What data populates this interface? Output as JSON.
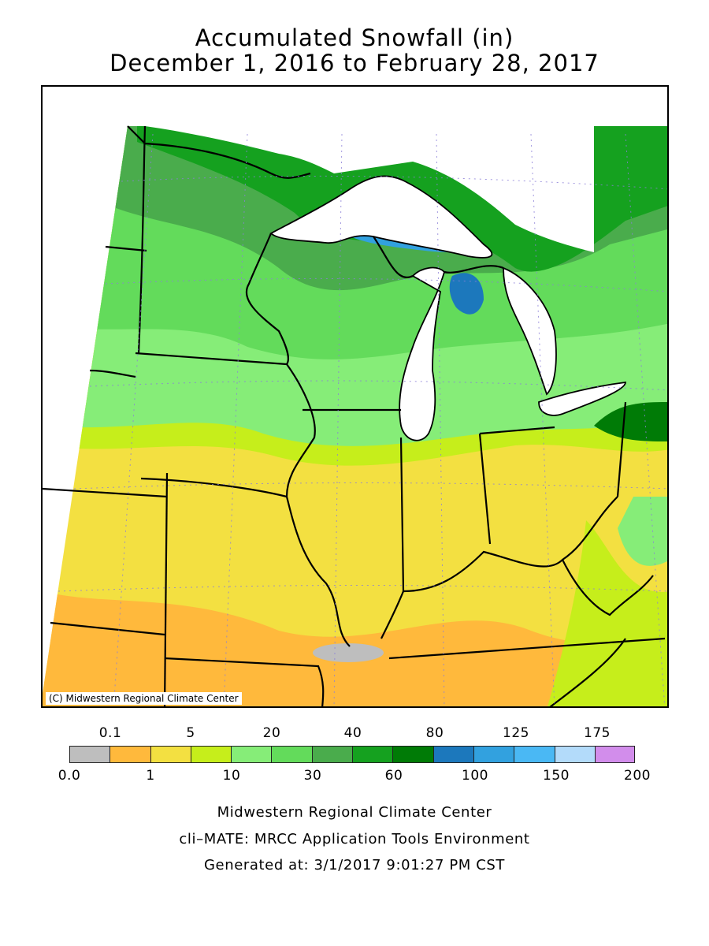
{
  "title": {
    "line1": "Accumulated Snowfall (in)",
    "line2": "December 1, 2016 to February 28, 2017"
  },
  "map": {
    "copyright": "(C) Midwestern Regional Climate Center",
    "region": "Upper Midwest and Great Lakes"
  },
  "legend": {
    "top_labels": [
      "0.1",
      "5",
      "20",
      "40",
      "80",
      "125",
      "175"
    ],
    "bottom_labels": [
      "0.0",
      "1",
      "10",
      "30",
      "60",
      "100",
      "150",
      "200"
    ],
    "colors": [
      "#bebebe",
      "#ffb93c",
      "#f3e041",
      "#c6ee1b",
      "#86ed78",
      "#63db5b",
      "#4aac4c",
      "#15a11f",
      "#007b06",
      "#1c78bc",
      "#32a1df",
      "#4ab8f4",
      "#b3dbfa",
      "#d28deb"
    ]
  },
  "footer": {
    "line1": "Midwestern Regional Climate Center",
    "line2": "cli–MATE: MRCC Application Tools Environment",
    "line3": "Generated at: 3/1/2017 9:01:27 PM CST"
  }
}
